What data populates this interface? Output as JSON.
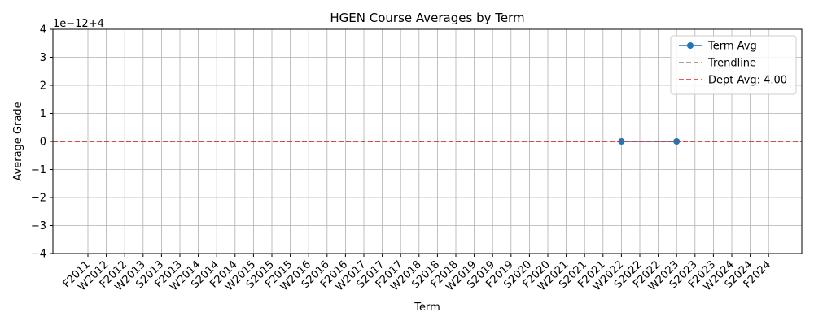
{
  "chart_data": {
    "type": "line",
    "title": "HGEN Course Averages by Term",
    "xlabel": "Term",
    "ylabel": "Average Grade",
    "offset_text": "1e−12+4",
    "categories": [
      "F2011",
      "W2012",
      "F2012",
      "W2013",
      "S2013",
      "F2013",
      "W2014",
      "S2014",
      "F2014",
      "W2015",
      "S2015",
      "F2015",
      "W2016",
      "S2016",
      "F2016",
      "W2017",
      "S2017",
      "F2017",
      "W2018",
      "S2018",
      "F2018",
      "W2019",
      "S2019",
      "F2019",
      "S2020",
      "F2020",
      "W2021",
      "S2021",
      "F2021",
      "W2022",
      "S2022",
      "F2022",
      "W2023",
      "S2023",
      "F2023",
      "W2024",
      "S2024",
      "F2024"
    ],
    "y_ticks": [
      -4,
      -3,
      -2,
      -1,
      0,
      1,
      2,
      3,
      4
    ],
    "y_tick_labels": [
      "−4",
      "−3",
      "−2",
      "−1",
      "0",
      "1",
      "2",
      "3",
      "4"
    ],
    "ylim": [
      -4,
      4
    ],
    "grid": true,
    "legend_position": "top-right",
    "series": [
      {
        "name": "Term Avg",
        "color": "#1f77b4",
        "marker": "circle",
        "points": [
          {
            "x": "W2022",
            "y": 0
          },
          {
            "x": "W2023",
            "y": 0
          }
        ]
      },
      {
        "name": "Trendline",
        "color": "#808080",
        "style": "dashed",
        "y_const": 0
      },
      {
        "name": "Dept Avg: 4.00",
        "color": "#d62728",
        "style": "dashed",
        "y_const": 0
      }
    ]
  }
}
